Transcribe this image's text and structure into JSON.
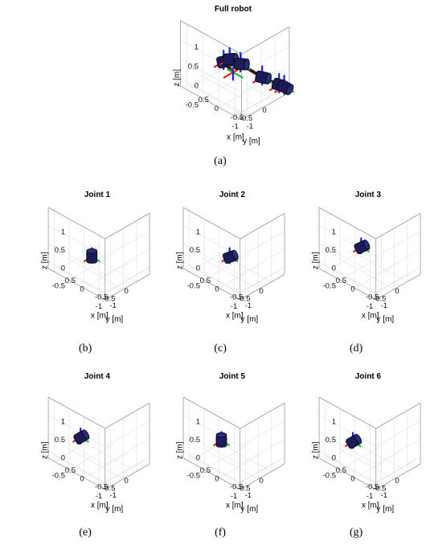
{
  "chart_data": [
    {
      "type": "3d-plot",
      "title": "Full robot",
      "caption": "(a)",
      "xlabel": "x [m]",
      "ylabel": "y [m]",
      "zlabel": "z [m]",
      "xticks": [
        "-1",
        "-0.5",
        "0"
      ],
      "yticks": [
        "-1",
        "-0.5",
        "0",
        "0.5"
      ],
      "zticks": [
        "1",
        "0.5",
        "0",
        "-0.5"
      ],
      "xlim": [
        -1.2,
        0.5
      ],
      "ylim": [
        -1.2,
        0.7
      ],
      "zlim": [
        -0.7,
        1.0
      ],
      "grid": true,
      "view": "full robot arm with six joint frames",
      "highlight_joint": 0
    },
    {
      "type": "3d-plot",
      "title": "Joint 1",
      "caption": "(b)",
      "xlabel": "x [m]",
      "ylabel": "y [m]",
      "zlabel": "z [m]",
      "xticks": [
        "-1",
        "-0.5",
        "0"
      ],
      "yticks": [
        "-1",
        "-0.5",
        "0",
        "0.5"
      ],
      "zticks": [
        "1",
        "0.5",
        "0",
        "-0.5"
      ],
      "grid": true,
      "highlight_joint": 1
    },
    {
      "type": "3d-plot",
      "title": "Joint 2",
      "caption": "(c)",
      "xlabel": "x [m]",
      "ylabel": "y [m]",
      "zlabel": "z [m]",
      "xticks": [
        "-1",
        "-0.5",
        "0"
      ],
      "yticks": [
        "-1",
        "-0.5",
        "0",
        "0.5"
      ],
      "zticks": [
        "1",
        "0.5",
        "0",
        "-0.5"
      ],
      "grid": true,
      "highlight_joint": 2
    },
    {
      "type": "3d-plot",
      "title": "Joint 3",
      "caption": "(d)",
      "xlabel": "x [m]",
      "ylabel": "y [m]",
      "zlabel": "z [m]",
      "xticks": [
        "-1",
        "-0.5",
        "0"
      ],
      "yticks": [
        "-1",
        "-0.5",
        "0",
        "0.5"
      ],
      "zticks": [
        "1",
        "0.5",
        "0",
        "-0.5"
      ],
      "grid": true,
      "highlight_joint": 3
    },
    {
      "type": "3d-plot",
      "title": "Joint 4",
      "caption": "(e)",
      "xlabel": "x [m]",
      "ylabel": "y [m]",
      "zlabel": "z [m]",
      "xticks": [
        "-1",
        "-0.5",
        "0"
      ],
      "yticks": [
        "-1",
        "-0.5",
        "0",
        "0.5"
      ],
      "zticks": [
        "1",
        "0.5",
        "0",
        "-0.5"
      ],
      "grid": true,
      "highlight_joint": 4
    },
    {
      "type": "3d-plot",
      "title": "Joint 5",
      "caption": "(f)",
      "xlabel": "x [m]",
      "ylabel": "y [m]",
      "zlabel": "z [m]",
      "xticks": [
        "-1",
        "-0.5",
        "0"
      ],
      "yticks": [
        "-1",
        "-0.5",
        "0",
        "0.5"
      ],
      "zticks": [
        "1",
        "0.5",
        "0",
        "-0.5"
      ],
      "grid": true,
      "highlight_joint": 5
    },
    {
      "type": "3d-plot",
      "title": "Joint 6",
      "caption": "(g)",
      "xlabel": "x [m]",
      "ylabel": "y [m]",
      "zlabel": "z [m]",
      "xticks": [
        "-1",
        "-0.5",
        "0"
      ],
      "yticks": [
        "-1",
        "-0.5",
        "0",
        "0.5"
      ],
      "zticks": [
        "1",
        "0.5",
        "0",
        "-0.5"
      ],
      "grid": true,
      "highlight_joint": 6
    }
  ],
  "colors": {
    "x_axis_frame": "#e02020",
    "y_axis_frame": "#18c418",
    "z_axis_frame": "#1a1ae0",
    "joint_body": "#1c1c5a",
    "link": "#3a1010",
    "grid": "#e3e3e3"
  }
}
